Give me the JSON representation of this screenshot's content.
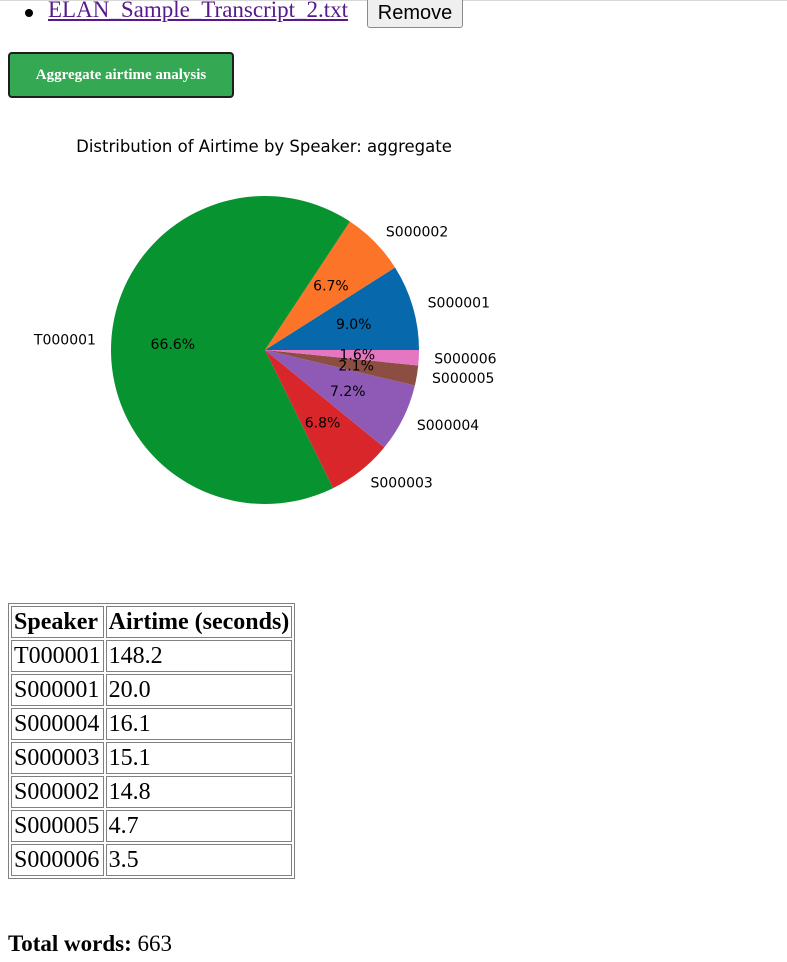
{
  "file_list": {
    "items": [
      {
        "name": "ELAN_Sample_Transcript_2.txt",
        "remove_label": "Remove"
      }
    ]
  },
  "aggregate_button_label": "Aggregate airtime analysis",
  "chart_data": {
    "type": "pie",
    "title": "Distribution of Airtime by Speaker: aggregate",
    "start_angle_deg": 0,
    "direction": "counterclockwise",
    "slices": [
      {
        "label": "S000001",
        "value": 9.0,
        "pct_label": "9.0%",
        "color": "#0868ac"
      },
      {
        "label": "S000002",
        "value": 6.7,
        "pct_label": "6.7%",
        "color": "#fb7427"
      },
      {
        "label": "T000001",
        "value": 66.6,
        "pct_label": "66.6%",
        "color": "#069330"
      },
      {
        "label": "S000003",
        "value": 6.8,
        "pct_label": "6.8%",
        "color": "#d9262b"
      },
      {
        "label": "S000004",
        "value": 7.2,
        "pct_label": "7.2%",
        "color": "#8e5ab6"
      },
      {
        "label": "S000005",
        "value": 2.1,
        "pct_label": "2.1%",
        "color": "#8c4e42"
      },
      {
        "label": "S000006",
        "value": 1.6,
        "pct_label": "1.6%",
        "color": "#e476c2"
      }
    ]
  },
  "table": {
    "headers": [
      "Speaker",
      "Airtime (seconds)"
    ],
    "rows": [
      [
        "T000001",
        "148.2"
      ],
      [
        "S000001",
        "20.0"
      ],
      [
        "S000004",
        "16.1"
      ],
      [
        "S000003",
        "15.1"
      ],
      [
        "S000002",
        "14.8"
      ],
      [
        "S000005",
        "4.7"
      ],
      [
        "S000006",
        "3.5"
      ]
    ]
  },
  "total_words": {
    "label": "Total words:",
    "value": "663"
  }
}
